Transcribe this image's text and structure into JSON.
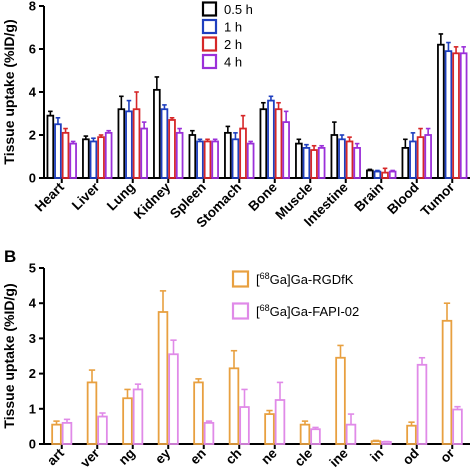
{
  "panel_labels": [
    "",
    "B"
  ],
  "chart_data": [
    {
      "type": "bar",
      "title": "",
      "xlabel": "",
      "ylabel": "Tissue uptake (%ID/g)",
      "ylim": [
        0,
        8
      ],
      "yticks": [
        "0",
        "2",
        "4",
        "6",
        "8"
      ],
      "grid": false,
      "legend_position": "top-center",
      "categories": [
        "Heart",
        "Liver",
        "Lung",
        "Kidney",
        "Spleen",
        "Stomach",
        "Bone",
        "Muscle",
        "Intestine",
        "Brain",
        "Blood",
        "Tumor"
      ],
      "series": [
        {
          "name": "0.5 h",
          "color": "#000000",
          "values": [
            2.9,
            1.8,
            3.2,
            4.1,
            2.0,
            2.1,
            3.2,
            1.6,
            2.0,
            0.35,
            1.4,
            6.2
          ],
          "errors": [
            0.2,
            0.15,
            0.6,
            0.6,
            0.2,
            0.3,
            0.3,
            0.2,
            0.6,
            0.05,
            0.4,
            0.5
          ]
        },
        {
          "name": "1 h",
          "color": "#1f3fbf",
          "values": [
            2.5,
            1.7,
            3.1,
            3.2,
            1.7,
            1.8,
            3.6,
            1.4,
            1.8,
            0.3,
            1.7,
            5.9
          ],
          "errors": [
            0.3,
            0.15,
            0.5,
            0.2,
            0.1,
            0.3,
            0.2,
            0.15,
            0.2,
            0.05,
            0.4,
            0.4
          ]
        },
        {
          "name": "2 h",
          "color": "#d62728",
          "values": [
            2.1,
            1.9,
            3.2,
            2.7,
            1.7,
            2.3,
            3.2,
            1.3,
            1.7,
            0.25,
            1.9,
            5.8
          ],
          "errors": [
            0.2,
            0.1,
            0.8,
            0.1,
            0.1,
            0.6,
            0.3,
            0.2,
            0.2,
            0.2,
            0.4,
            0.3
          ]
        },
        {
          "name": "4 h",
          "color": "#9b30d9",
          "values": [
            1.6,
            2.1,
            2.3,
            2.1,
            1.7,
            1.6,
            2.6,
            1.4,
            1.4,
            0.3,
            2.0,
            5.8
          ],
          "errors": [
            0.1,
            0.1,
            0.3,
            0.2,
            0.1,
            0.1,
            0.5,
            0.1,
            0.2,
            0.05,
            0.3,
            0.3
          ]
        }
      ]
    },
    {
      "type": "bar",
      "title": "",
      "xlabel": "",
      "ylabel": "Tissue uptake (%ID/g)",
      "ylim": [
        0,
        5
      ],
      "yticks": [
        "0",
        "1",
        "2",
        "3",
        "4",
        "5"
      ],
      "grid": false,
      "legend_position": "top-right",
      "categories": [
        "Heart",
        "Liver",
        "Lung",
        "Kidney",
        "Spleen",
        "Stomach",
        "Bone",
        "Muscle",
        "Intestine",
        "Brain",
        "Blood",
        "Tumor"
      ],
      "tick_labels_visible": [
        "art",
        "ver",
        "ng",
        "ey",
        "en",
        "ch",
        "ne",
        "cle",
        "ine",
        "in",
        "od",
        "or"
      ],
      "series": [
        {
          "name": "[68Ga]Ga-RGDfK",
          "name_sup": "68",
          "name_pre": "[",
          "name_post": "Ga]Ga-RGDfK",
          "color": "#e8a040",
          "values": [
            0.55,
            1.75,
            1.3,
            3.75,
            1.75,
            2.15,
            0.85,
            0.55,
            2.45,
            0.08,
            0.52,
            3.5
          ],
          "errors": [
            0.1,
            0.35,
            0.25,
            0.6,
            0.1,
            0.5,
            0.1,
            0.1,
            0.35,
            0.02,
            0.1,
            0.5
          ]
        },
        {
          "name": "[68Ga]Ga-FAPI-02",
          "name_sup": "68",
          "name_pre": "[",
          "name_post": "Ga]Ga-FAPI-02",
          "color": "#e08ae8",
          "values": [
            0.6,
            0.78,
            1.55,
            2.55,
            0.6,
            1.05,
            1.25,
            0.42,
            0.55,
            0.06,
            2.25,
            0.98
          ],
          "errors": [
            0.1,
            0.1,
            0.15,
            0.4,
            0.05,
            0.5,
            0.5,
            0.05,
            0.3,
            0.01,
            0.2,
            0.08
          ]
        }
      ]
    }
  ]
}
